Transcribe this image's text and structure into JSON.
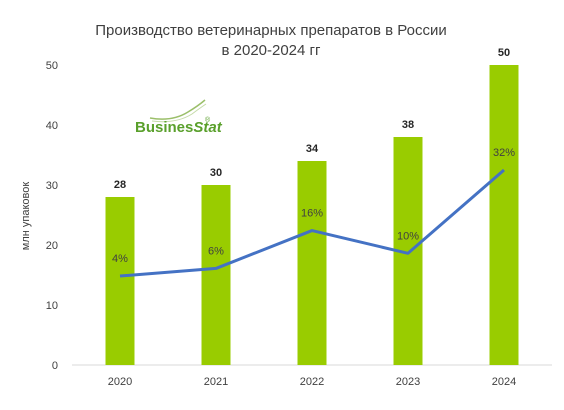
{
  "chart_data": {
    "type": "bar",
    "title_line1": "Производство ветеринарных препаратов в России",
    "title_line2": "в 2020-2024 гг",
    "ylabel": "млн упаковок",
    "xlabel": "",
    "categories": [
      "2020",
      "2021",
      "2022",
      "2023",
      "2024"
    ],
    "series": [
      {
        "values": [
          28,
          30,
          34,
          38,
          50
        ],
        "labels": [
          "28",
          "30",
          "34",
          "38",
          "50"
        ],
        "color": "#99cc00"
      },
      {
        "type": "line",
        "values": [
          4,
          6,
          16,
          10,
          32
        ],
        "labels": [
          "4%",
          "6%",
          "16%",
          "10%",
          "32%"
        ],
        "color": "#4472c4"
      }
    ],
    "ylim": [
      0,
      50
    ],
    "yticks": [
      "0",
      "10",
      "20",
      "30",
      "40",
      "50"
    ],
    "grid": false,
    "legend": "none"
  },
  "logo": {
    "text_part1": "Busines",
    "text_part2": "Stat",
    "registered": "®",
    "color": "#5aa02c"
  }
}
